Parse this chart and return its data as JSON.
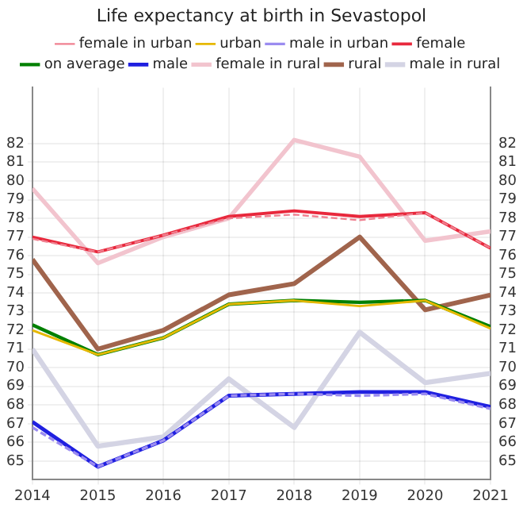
{
  "chart_data": {
    "type": "line",
    "title": "Life expectancy at birth in Sevastopol",
    "x": [
      2014,
      2015,
      2016,
      2017,
      2018,
      2019,
      2020,
      2021
    ],
    "xlim": [
      2014,
      2021
    ],
    "xticks": [
      2014,
      2015,
      2016,
      2017,
      2018,
      2019,
      2020,
      2021
    ],
    "ylim": [
      64,
      85
    ],
    "yticks": [
      65,
      66,
      67,
      68,
      69,
      70,
      71,
      72,
      73,
      74,
      75,
      76,
      77,
      78,
      79,
      80,
      81,
      82
    ],
    "y2lim": [
      64,
      85
    ],
    "y2ticks": [
      65,
      66,
      67,
      68,
      69,
      70,
      71,
      72,
      73,
      74,
      75,
      76,
      77,
      78,
      79,
      80,
      81,
      82
    ],
    "grid": true,
    "legend": "top",
    "marker": "none",
    "series": [
      {
        "name": "female in urban",
        "color": "#f08090",
        "line_style": "dashed",
        "values": [
          76.9,
          76.2,
          77.1,
          78.0,
          78.2,
          77.9,
          78.3,
          76.4
        ]
      },
      {
        "name": "urban",
        "color": "#e6b800",
        "values": [
          72.0,
          70.7,
          71.6,
          73.4,
          73.6,
          73.3,
          73.6,
          72.1
        ]
      },
      {
        "name": "male in urban",
        "color": "#9b8cf0",
        "line_style": "dashed",
        "values": [
          66.8,
          64.7,
          66.1,
          68.5,
          68.6,
          68.5,
          68.6,
          67.8
        ]
      },
      {
        "name": "female",
        "color": "#e8283c",
        "values": [
          77.0,
          76.2,
          77.1,
          78.1,
          78.4,
          78.1,
          78.3,
          76.4
        ]
      },
      {
        "name": "on average",
        "color": "#008000",
        "values": [
          72.3,
          70.7,
          71.6,
          73.4,
          73.6,
          73.5,
          73.6,
          72.2
        ]
      },
      {
        "name": "male",
        "color": "#2020e0",
        "values": [
          67.1,
          64.7,
          66.1,
          68.5,
          68.6,
          68.7,
          68.7,
          67.9
        ]
      },
      {
        "name": "female in rural",
        "color": "#f2c4ce",
        "values": [
          79.6,
          75.6,
          77.0,
          78.0,
          82.2,
          81.3,
          76.8,
          77.3
        ]
      },
      {
        "name": "rural",
        "color": "#a0644c",
        "values": [
          75.8,
          71.0,
          72.0,
          73.9,
          74.5,
          77.0,
          73.1,
          73.9
        ]
      },
      {
        "name": "male in rural",
        "color": "#d4d4e4",
        "values": [
          71.0,
          65.8,
          66.3,
          69.4,
          66.8,
          71.9,
          69.2,
          69.7
        ]
      }
    ]
  }
}
